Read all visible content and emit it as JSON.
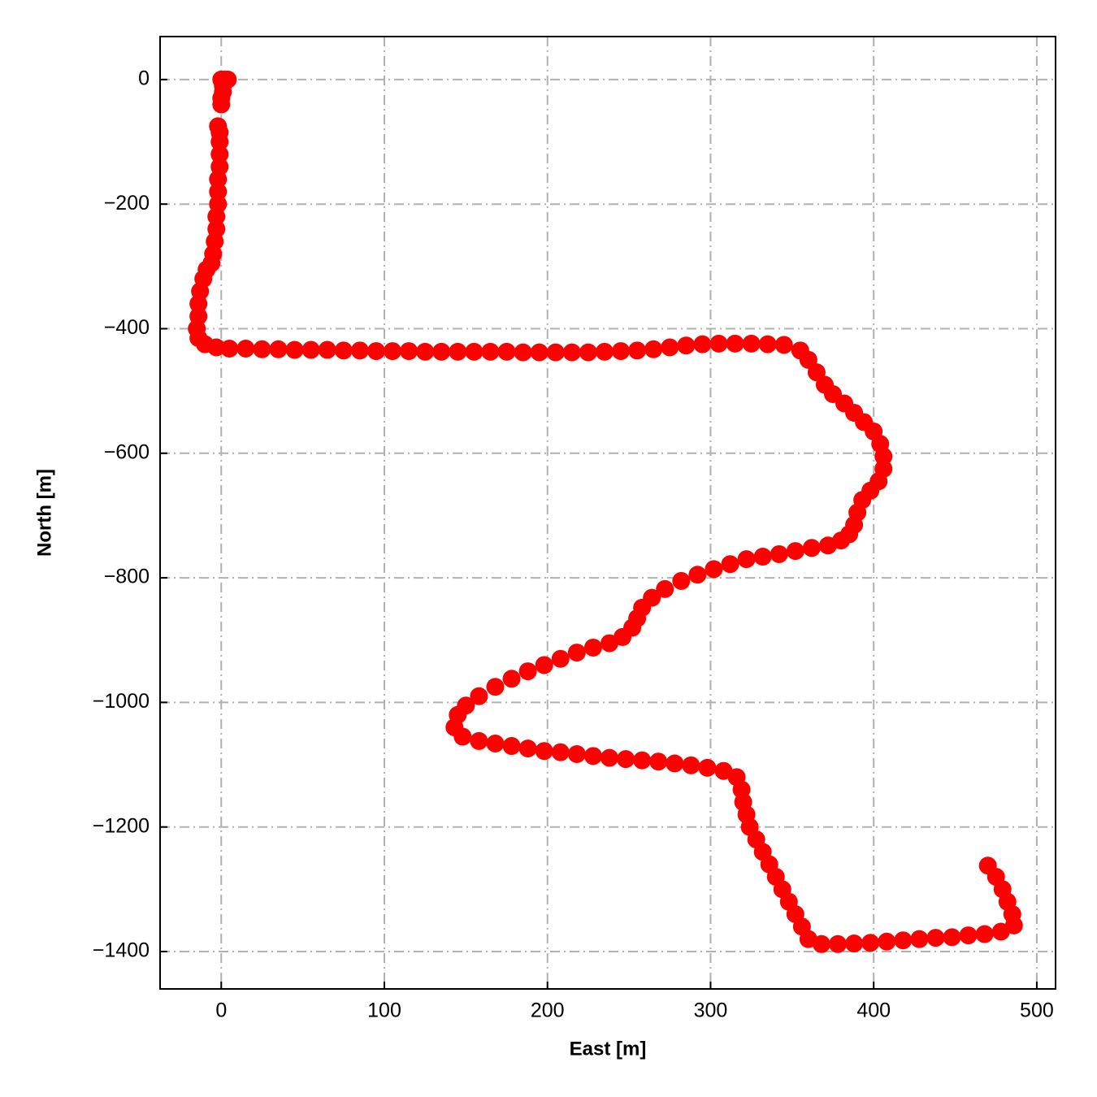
{
  "chart_data": {
    "type": "scatter",
    "xlabel": "East [m]",
    "ylabel": "North [m]",
    "color": "#ff0000",
    "grid": true,
    "xlim": [
      -37.5,
      511.5
    ],
    "ylim": [
      -1460,
      69
    ],
    "xticks": [
      0,
      100,
      200,
      300,
      400,
      500
    ],
    "yticks": [
      {
        "value": -1400,
        "label": "−1400"
      },
      {
        "value": -1200,
        "label": "−1200"
      },
      {
        "value": -1000,
        "label": "−1000"
      },
      {
        "value": -800,
        "label": "−800"
      },
      {
        "value": -600,
        "label": "−600"
      },
      {
        "value": -400,
        "label": "−400"
      },
      {
        "value": -200,
        "label": "−200"
      },
      0
    ],
    "x": [
      0,
      2,
      4,
      1,
      1,
      0,
      0,
      -2,
      -1,
      -1,
      -1,
      -1,
      -2,
      -2,
      -2,
      -3,
      -3,
      -4,
      -5,
      -6,
      -9,
      -11,
      -13,
      -14,
      -14,
      -15,
      -14,
      -10,
      -3,
      5,
      15,
      25,
      35,
      45,
      55,
      65,
      75,
      85,
      95,
      105,
      115,
      125,
      135,
      145,
      155,
      165,
      175,
      185,
      195,
      205,
      215,
      225,
      235,
      245,
      255,
      265,
      275,
      285,
      295,
      305,
      315,
      325,
      335,
      345,
      355,
      360,
      365,
      370,
      375,
      382,
      388,
      394,
      400,
      404,
      406,
      406,
      403,
      398,
      393,
      390,
      388,
      385,
      380,
      372,
      362,
      352,
      342,
      332,
      322,
      312,
      302,
      292,
      282,
      272,
      264,
      258,
      255,
      252,
      246,
      238,
      228,
      218,
      208,
      198,
      188,
      178,
      168,
      158,
      150,
      145,
      143,
      148,
      158,
      168,
      178,
      188,
      198,
      208,
      218,
      228,
      238,
      248,
      258,
      268,
      278,
      288,
      298,
      308,
      316,
      319,
      320,
      322,
      324,
      328,
      332,
      336,
      340,
      344,
      348,
      352,
      356,
      360,
      368,
      378,
      388,
      398,
      408,
      418,
      428,
      438,
      448,
      458,
      468,
      478,
      486,
      485,
      482,
      479,
      475,
      470
    ],
    "values": [
      0,
      0,
      0,
      -10,
      -20,
      -30,
      -40,
      -75,
      -85,
      -100,
      -120,
      -140,
      -160,
      -180,
      -200,
      -220,
      -240,
      -260,
      -280,
      -295,
      -305,
      -320,
      -340,
      -360,
      -380,
      -400,
      -415,
      -425,
      -430,
      -432,
      -432,
      -433,
      -433,
      -434,
      -434,
      -434,
      -435,
      -435,
      -436,
      -436,
      -436,
      -437,
      -437,
      -437,
      -437,
      -437,
      -437,
      -438,
      -438,
      -438,
      -438,
      -438,
      -437,
      -436,
      -435,
      -433,
      -430,
      -427,
      -425,
      -424,
      -424,
      -424,
      -425,
      -426,
      -435,
      -450,
      -470,
      -490,
      -505,
      -520,
      -535,
      -550,
      -565,
      -585,
      -605,
      -625,
      -645,
      -660,
      -675,
      -695,
      -715,
      -730,
      -740,
      -748,
      -752,
      -757,
      -762,
      -766,
      -770,
      -778,
      -786,
      -795,
      -805,
      -818,
      -832,
      -848,
      -865,
      -880,
      -895,
      -905,
      -912,
      -920,
      -930,
      -940,
      -950,
      -962,
      -975,
      -990,
      -1005,
      -1020,
      -1040,
      -1055,
      -1062,
      -1066,
      -1070,
      -1074,
      -1078,
      -1080,
      -1083,
      -1086,
      -1089,
      -1091,
      -1093,
      -1095,
      -1098,
      -1101,
      -1105,
      -1110,
      -1120,
      -1140,
      -1160,
      -1180,
      -1200,
      -1220,
      -1240,
      -1260,
      -1280,
      -1300,
      -1320,
      -1340,
      -1360,
      -1380,
      -1388,
      -1388,
      -1387,
      -1386,
      -1384,
      -1382,
      -1380,
      -1378,
      -1377,
      -1374,
      -1372,
      -1368,
      -1358,
      -1340,
      -1320,
      -1300,
      -1280,
      -1262
    ]
  }
}
